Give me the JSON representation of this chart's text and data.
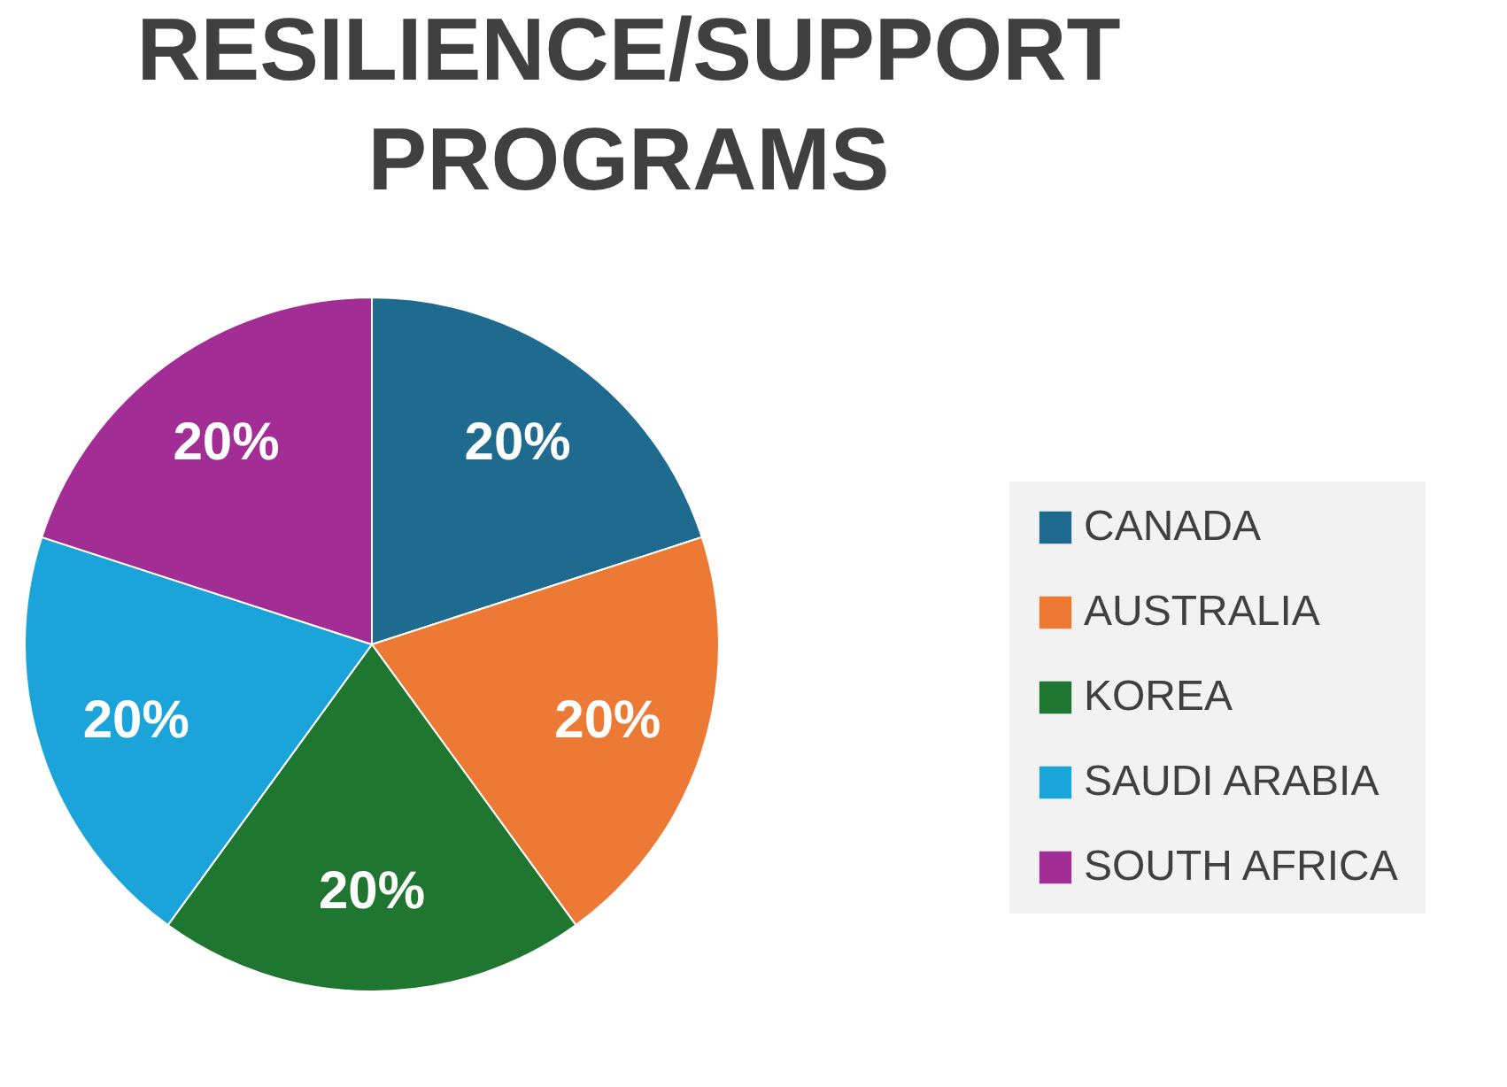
{
  "chart_data": {
    "type": "pie",
    "title": "RESILIENCE/SUPPORT PROGRAMS",
    "categories": [
      "CANADA",
      "AUSTRALIA",
      "KOREA",
      "SAUDI ARABIA",
      "SOUTH AFRICA"
    ],
    "values": [
      20,
      20,
      20,
      20,
      20
    ],
    "colors": [
      "#1f6a8f",
      "#ec7a35",
      "#1f7631",
      "#1aa4d9",
      "#a12d95"
    ],
    "value_labels": [
      "20%",
      "20%",
      "20%",
      "20%",
      "20%"
    ],
    "legend": "right"
  }
}
